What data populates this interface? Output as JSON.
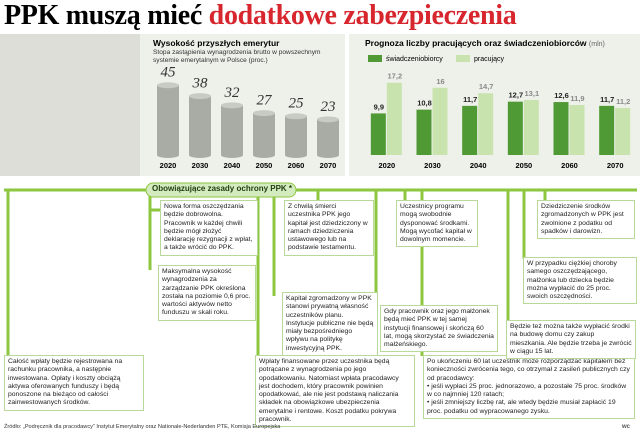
{
  "headline": [
    "PPK muszą mieć",
    "dodatkowe zabezpieczenia"
  ],
  "chart_data": [
    {
      "type": "bar",
      "title": "Wysokość przyszłych emerytur",
      "subtitle": "Stopa zastąpienia wynagrodzenia brutto w powszechnym systemie emerytalnym w Polsce (proc.)",
      "categories": [
        "2020",
        "2030",
        "2040",
        "2050",
        "2060",
        "2070"
      ],
      "values": [
        45,
        38,
        32,
        27,
        25,
        23
      ],
      "color": "#a9aba5"
    },
    {
      "type": "grouped_bar",
      "title": "Prognoza liczby pracujących oraz świadczeniobiorców",
      "unit": "(mln)",
      "categories": [
        "2020",
        "2030",
        "2040",
        "2050",
        "2060",
        "2070"
      ],
      "series": [
        {
          "name": "świadczeniobiorcy",
          "color": "#4f9a35",
          "values": [
            9.9,
            10.8,
            11.7,
            12.7,
            12.6,
            11.7
          ],
          "value_labels": [
            "9,9",
            "10,8",
            "11,7",
            "12,7",
            "12,6",
            "11,7"
          ]
        },
        {
          "name": "pracujący",
          "color": "#c9e3ae",
          "values": [
            17.2,
            16,
            14.7,
            13.1,
            11.9,
            11.2
          ],
          "value_labels": [
            "17,2",
            "16",
            "14,7",
            "13,1",
            "11,9",
            "11,2"
          ]
        }
      ],
      "legend": "top-left"
    }
  ],
  "rules": {
    "title": "Obowiązujące zasady ochrony PPK *",
    "boxes": [
      {
        "text": "Nowa forma oszczędzania będzie dobrowolna. Pracownik w każdej chwili będzie mógł złożyć deklarację rezygnacji z wpłat, a także wrócić do PPK."
      },
      {
        "text": "Maksymalna wysokość wynagrodzenia za zarządzanie PPK określona została na poziomie 0,6 proc. wartości aktywów netto funduszu w skali roku."
      },
      {
        "text": "Całość wpłaty będzie rejestrowana na rachunku pracownika, a następnie inwestowana. Opłaty i koszty obciążą aktywa oferowanych funduszy i będą ponoszone na bieżąco od całości zainwestowanych środków."
      },
      {
        "text": "Z chwilą śmierci uczestnika PPK jego kapitał jest dziedziczony w ramach dziedziczenia ustawowego lub na podstawie testamentu."
      },
      {
        "text": "Kapitał zgromadzony w PPK stanowi prywatną własność uczestników planu. Instytucje publiczne nie będą miały bezpośredniego wpływu na politykę inwestycyjną PPK."
      },
      {
        "text": "Wpłaty finansowane przez uczestnika będą potrącane z wynagrodzenia po jego opodatkowaniu. Natomiast wpłata pracodawcy jest dochodem, który pracownik powinien opodatkować, ale nie jest podstawą naliczania składek na obowiązkowe ubezpieczenia emerytalne i rentowe. Koszt podatku pokrywa pracownik."
      },
      {
        "text": "Uczestnicy programu mogą swobodnie dysponować środkami. Mogą wycofać kapitał w dowolnym momencie."
      },
      {
        "text": "Gdy pracownik oraz jego małżonek będą mieć PPK w tej samej instytucji finansowej i skończą 60 lat, mogą skorzystać ze świadczenia małżeńskiego."
      },
      {
        "text": "Po ukończeniu 60 lat uczestnik może rozporządzać kapitałem bez konieczności zwrócenia tego, co otrzymał z zasileń publicznych czy od pracodawcy:",
        "bullets": [
          "• jeśli wypłaci 25 proc. jednorazowo, a pozostałe 75 proc. środków w co najmniej 120 ratach;",
          "• jeśli zmniejszy liczbę rat, ale wtedy będzie musiał zapłacić 19 proc. podatku od wypracowanego zysku."
        ]
      },
      {
        "text": "Dziedziczenie środków zgromadzonych w PPK jest zwolnione z podatku od spadków i darowizn."
      },
      {
        "text": "W przypadku ciężkiej choroby samego oszczędzającego, małżonka lub dziecka będzie można wypłacić do 25 proc. swoich oszczędności."
      },
      {
        "text": "Będzie też można także wypłacić środki na budowę domu czy zakup mieszkania. Ale będzie trzeba je zwrócić w ciągu 15 lat."
      }
    ]
  },
  "source": "Źródło: „Podręcznik dla pracodawcy” Instytut Emerytalny oraz Nationale-Nederlanden PTE, Komisja Europejska",
  "credit": "wc"
}
